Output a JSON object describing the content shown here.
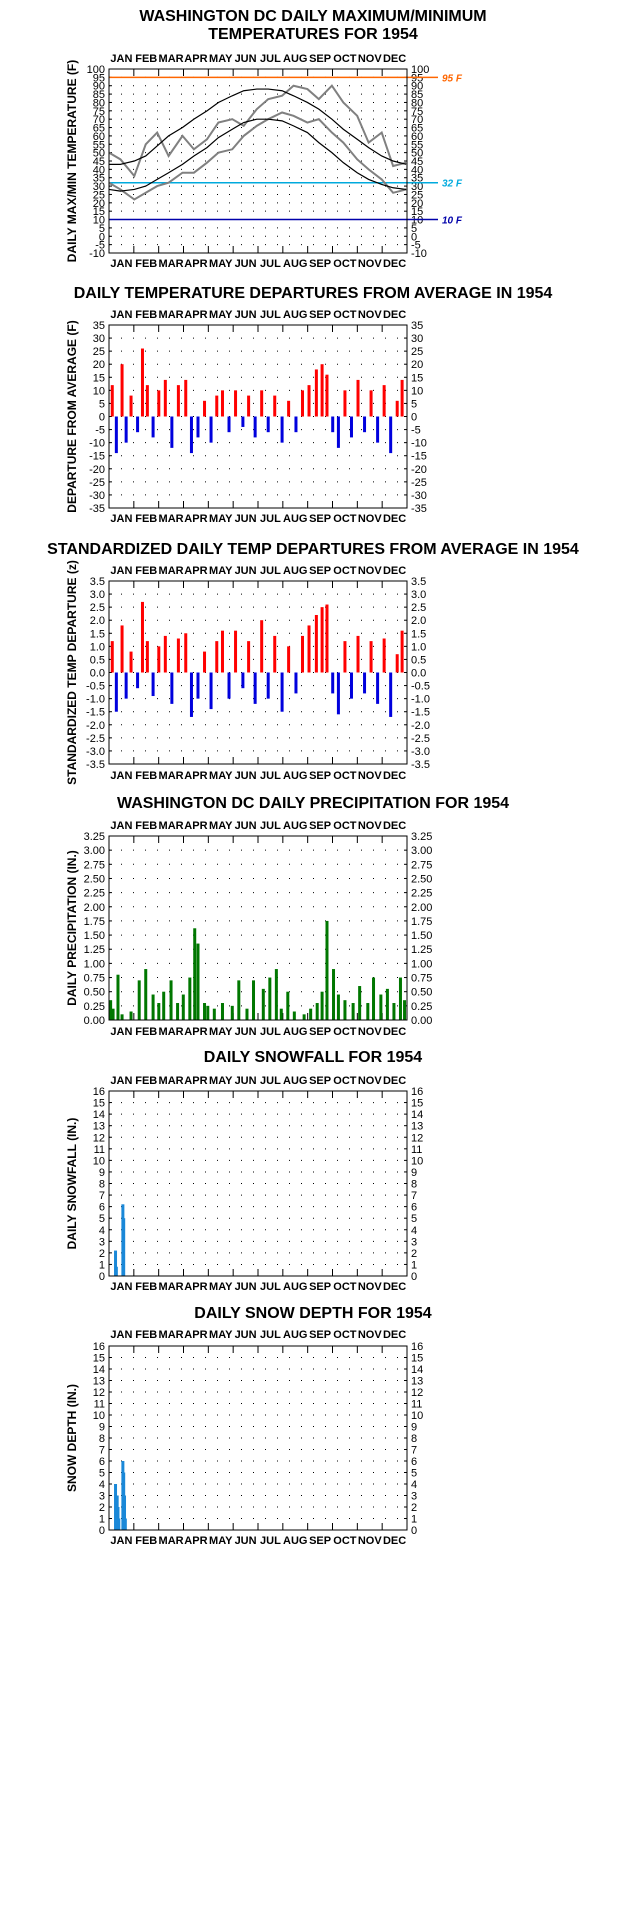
{
  "colors": {
    "warm": "#ff0000",
    "cold": "#0000dd",
    "observed": "#808080",
    "normal": "#000000",
    "precip": "#007700",
    "snow": "#1a88d8",
    "ref95": "#ff6600",
    "ref32": "#00aadd",
    "ref10": "#0000aa"
  },
  "months": [
    "JAN",
    "FEB",
    "MAR",
    "APR",
    "MAY",
    "JUN",
    "JUL",
    "AUG",
    "SEP",
    "OCT",
    "NOV",
    "DEC"
  ],
  "chart_data": [
    {
      "type": "line",
      "title": [
        "WASHINGTON DC DAILY MAXIMUM/MINIMUM",
        "TEMPERATURES FOR 1954"
      ],
      "ylabel": "DAILY MAX/MIN TEMPERATURE (F)",
      "ylim": [
        -10,
        100
      ],
      "ytick_step": 5,
      "grid": true,
      "reference_lines": [
        {
          "label": "95 F",
          "value": 95,
          "color": "ref95"
        },
        {
          "label": "32 F",
          "value": 32,
          "color": "ref32"
        },
        {
          "label": "10 F",
          "value": 10,
          "color": "ref10"
        }
      ],
      "x": {
        "unit": "month",
        "points": [
          1,
          15,
          32,
          46,
          60,
          74,
          91,
          105,
          121,
          135,
          152,
          166,
          182,
          196,
          213,
          227,
          244,
          258,
          274,
          288,
          305,
          319,
          335,
          349,
          365
        ]
      },
      "series": [
        {
          "role": "max",
          "style": "observed",
          "values": [
            50,
            46,
            36,
            55,
            62,
            48,
            60,
            52,
            58,
            68,
            70,
            66,
            76,
            82,
            84,
            90,
            88,
            82,
            90,
            80,
            72,
            56,
            62,
            42,
            44
          ]
        },
        {
          "role": "min",
          "style": "observed",
          "values": [
            32,
            28,
            22,
            26,
            30,
            32,
            38,
            38,
            44,
            50,
            52,
            60,
            66,
            70,
            74,
            72,
            68,
            70,
            62,
            56,
            46,
            40,
            34,
            26,
            28
          ]
        },
        {
          "role": "normal-max",
          "style": "normal",
          "values": [
            43,
            43,
            45,
            48,
            54,
            60,
            65,
            70,
            75,
            80,
            84,
            87,
            88,
            88,
            87,
            84,
            80,
            76,
            70,
            64,
            58,
            53,
            48,
            45,
            43
          ]
        },
        {
          "role": "normal-min",
          "style": "normal",
          "values": [
            28,
            27,
            28,
            30,
            34,
            38,
            43,
            48,
            53,
            59,
            64,
            68,
            70,
            70,
            69,
            66,
            62,
            56,
            50,
            44,
            38,
            34,
            31,
            29,
            28
          ]
        }
      ]
    },
    {
      "type": "bar",
      "title": [
        "DAILY TEMPERATURE DEPARTURES FROM AVERAGE IN 1954"
      ],
      "ylabel": "DEPARTURE FROM AVERAGE (F)",
      "ylim": [
        -35,
        35
      ],
      "ytick_step": 5,
      "grid": true,
      "x": {
        "unit": "month",
        "points": [
          5,
          10,
          17,
          22,
          28,
          36,
          42,
          48,
          55,
          62,
          70,
          78,
          86,
          95,
          102,
          110,
          118,
          126,
          133,
          140,
          148,
          156,
          165,
          172,
          180,
          188,
          196,
          204,
          213,
          221,
          230,
          238,
          246,
          255,
          262,
          268,
          275,
          282,
          290,
          298,
          306,
          314,
          322,
          330,
          338,
          346,
          354,
          360
        ]
      },
      "values": [
        12,
        -14,
        20,
        -10,
        8,
        -6,
        26,
        12,
        -8,
        10,
        14,
        -12,
        12,
        14,
        -14,
        -8,
        6,
        -10,
        8,
        10,
        -6,
        10,
        -4,
        8,
        -8,
        10,
        -6,
        8,
        -10,
        6,
        -6,
        10,
        12,
        18,
        20,
        16,
        -6,
        -12,
        10,
        -8,
        14,
        -6,
        10,
        -10,
        12,
        -14,
        6,
        14
      ]
    },
    {
      "type": "bar",
      "title": [
        "STANDARDIZED DAILY TEMP DEPARTURES FROM AVERAGE IN 1954"
      ],
      "ylabel": "STANDARDIZED TEMP DEPARTURE (z)",
      "ylim": [
        -3.5,
        3.5
      ],
      "ytick_step": 0.5,
      "grid": true,
      "x": {
        "unit": "month",
        "points": [
          5,
          10,
          17,
          22,
          28,
          36,
          42,
          48,
          55,
          62,
          70,
          78,
          86,
          95,
          102,
          110,
          118,
          126,
          133,
          140,
          148,
          156,
          165,
          172,
          180,
          188,
          196,
          204,
          213,
          221,
          230,
          238,
          246,
          255,
          262,
          268,
          275,
          282,
          290,
          298,
          306,
          314,
          322,
          330,
          338,
          346,
          354,
          360
        ]
      },
      "values": [
        1.2,
        -1.5,
        1.8,
        -1.0,
        0.8,
        -0.6,
        2.7,
        1.2,
        -0.9,
        1.0,
        1.4,
        -1.2,
        1.3,
        1.5,
        -1.7,
        -1.0,
        0.8,
        -1.4,
        1.2,
        1.6,
        -1.0,
        1.6,
        -0.6,
        1.2,
        -1.2,
        2.0,
        -1.0,
        1.4,
        -1.5,
        1.0,
        -0.8,
        1.4,
        1.8,
        2.2,
        2.5,
        2.6,
        -0.8,
        -1.6,
        1.2,
        -1.0,
        1.4,
        -0.8,
        1.2,
        -1.2,
        1.3,
        -1.7,
        0.7,
        1.6
      ]
    },
    {
      "type": "bar",
      "title": [
        "WASHINGTON DC DAILY PRECIPITATION FOR 1954"
      ],
      "ylabel": "DAILY PRECIPITATION (IN.)",
      "ylim": [
        0,
        3.25
      ],
      "ytick_step": 0.25,
      "tick_decimals": 2,
      "grid": true,
      "x": {
        "unit": "month",
        "points": [
          3,
          6,
          12,
          17,
          28,
          38,
          46,
          55,
          62,
          68,
          77,
          85,
          92,
          100,
          106,
          110,
          118,
          122,
          130,
          140,
          152,
          160,
          170,
          178,
          190,
          198,
          206,
          212,
          220,
          228,
          240,
          248,
          256,
          262,
          268,
          276,
          282,
          290,
          300,
          308,
          318,
          325,
          334,
          342,
          350,
          358,
          363
        ]
      },
      "values": [
        0.35,
        0.2,
        0.8,
        0.1,
        0.15,
        0.7,
        0.9,
        0.45,
        0.3,
        0.5,
        0.7,
        0.3,
        0.45,
        0.75,
        1.62,
        1.35,
        0.3,
        0.25,
        0.2,
        0.3,
        0.25,
        0.7,
        0.2,
        0.7,
        0.55,
        0.75,
        0.9,
        0.2,
        0.5,
        0.15,
        0.1,
        0.2,
        0.3,
        0.5,
        1.75,
        0.9,
        0.45,
        0.35,
        0.3,
        0.6,
        0.3,
        0.75,
        0.45,
        0.55,
        0.3,
        0.75,
        0.35
      ]
    },
    {
      "type": "bar",
      "title": [
        "DAILY SNOWFALL FOR 1954"
      ],
      "ylabel": "DAILY SNOWFALL (IN.)",
      "ylim": [
        0,
        16
      ],
      "ytick_step": 1,
      "grid": true,
      "x": {
        "unit": "month",
        "points": [
          9,
          10,
          18,
          19
        ]
      },
      "values": [
        2.2,
        0.8,
        6.2,
        5.0
      ]
    },
    {
      "type": "bar",
      "title": [
        "DAILY SNOW DEPTH FOR 1954"
      ],
      "ylabel": "SNOW DEPTH (IN.)",
      "ylim": [
        0,
        16
      ],
      "ytick_step": 1,
      "grid": true,
      "x": {
        "unit": "month",
        "points": [
          9,
          10,
          11,
          12,
          13,
          18,
          19,
          20,
          21
        ]
      },
      "values": [
        4,
        3,
        3,
        2,
        1,
        6,
        5,
        3,
        1
      ]
    }
  ]
}
